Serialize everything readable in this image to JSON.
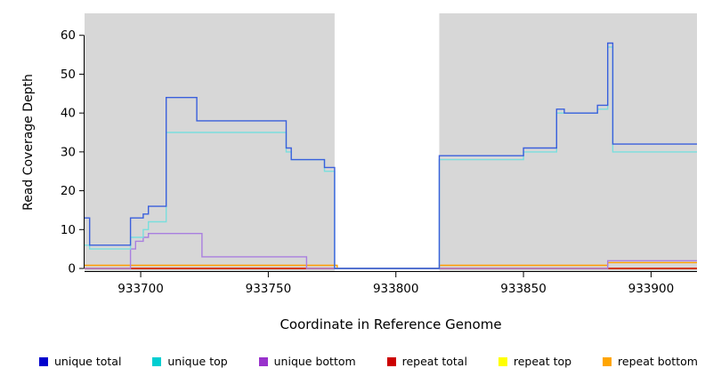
{
  "chart_data": {
    "type": "line",
    "step": true,
    "title": "",
    "xlabel": "Coordinate in Reference Genome",
    "ylabel": "Read Coverage Depth",
    "xlim": [
      933678,
      933918
    ],
    "ylim": [
      0,
      62
    ],
    "x_ticks": [
      933700,
      933750,
      933800,
      933850,
      933900
    ],
    "y_ticks": [
      0,
      10,
      20,
      30,
      40,
      50,
      60
    ],
    "grid": false,
    "legend_position": "bottom",
    "background": "#d7d7d7",
    "gap_region": {
      "x_start": 933776,
      "x_end": 933817,
      "color": "#ffffff"
    },
    "series": [
      {
        "name": "unique total",
        "color": "#3a5fdc",
        "swatch": "#0000cd",
        "points": [
          [
            933678,
            13
          ],
          [
            933680,
            6
          ],
          [
            933696,
            13
          ],
          [
            933701,
            14
          ],
          [
            933703,
            16
          ],
          [
            933710,
            44
          ],
          [
            933722,
            38
          ],
          [
            933757,
            31
          ],
          [
            933759,
            28
          ],
          [
            933772,
            26
          ],
          [
            933776,
            0
          ],
          [
            933817,
            29
          ],
          [
            933850,
            31
          ],
          [
            933863,
            41
          ],
          [
            933866,
            40
          ],
          [
            933879,
            42
          ],
          [
            933883,
            58
          ],
          [
            933885,
            32
          ],
          [
            933918,
            32
          ]
        ]
      },
      {
        "name": "unique top",
        "color": "#7adedd",
        "swatch": "#00ced1",
        "points": [
          [
            933678,
            6
          ],
          [
            933680,
            5
          ],
          [
            933696,
            8
          ],
          [
            933701,
            10
          ],
          [
            933703,
            12
          ],
          [
            933710,
            35
          ],
          [
            933757,
            30
          ],
          [
            933759,
            28
          ],
          [
            933772,
            25
          ],
          [
            933776,
            0
          ],
          [
            933817,
            28
          ],
          [
            933850,
            30
          ],
          [
            933863,
            40
          ],
          [
            933879,
            41
          ],
          [
            933883,
            57
          ],
          [
            933885,
            30
          ],
          [
            933918,
            30
          ]
        ]
      },
      {
        "name": "unique bottom",
        "color": "#a97fdf",
        "swatch": "#9932cc",
        "points": [
          [
            933678,
            0
          ],
          [
            933696,
            5
          ],
          [
            933698,
            7
          ],
          [
            933701,
            8
          ],
          [
            933703,
            9
          ],
          [
            933723,
            9
          ],
          [
            933724,
            3
          ],
          [
            933764,
            3
          ],
          [
            933765,
            0
          ],
          [
            933883,
            2
          ],
          [
            933918,
            2
          ]
        ]
      },
      {
        "name": "repeat total",
        "color": "#cc0000",
        "swatch": "#cc0000",
        "points": [
          [
            933678,
            0
          ],
          [
            933918,
            0
          ]
        ]
      },
      {
        "name": "repeat top",
        "color": "#ffff00",
        "swatch": "#ffff00",
        "points": [
          [
            933678,
            0
          ],
          [
            933918,
            0
          ]
        ]
      },
      {
        "name": "repeat bottom",
        "color": "#ff9d00",
        "swatch": "#ffa500",
        "points": [
          [
            933678,
            0.8
          ],
          [
            933776,
            0.8
          ],
          [
            933777,
            0
          ],
          [
            933817,
            0.8
          ],
          [
            933883,
            1.5
          ],
          [
            933918,
            1.5
          ]
        ]
      }
    ]
  }
}
